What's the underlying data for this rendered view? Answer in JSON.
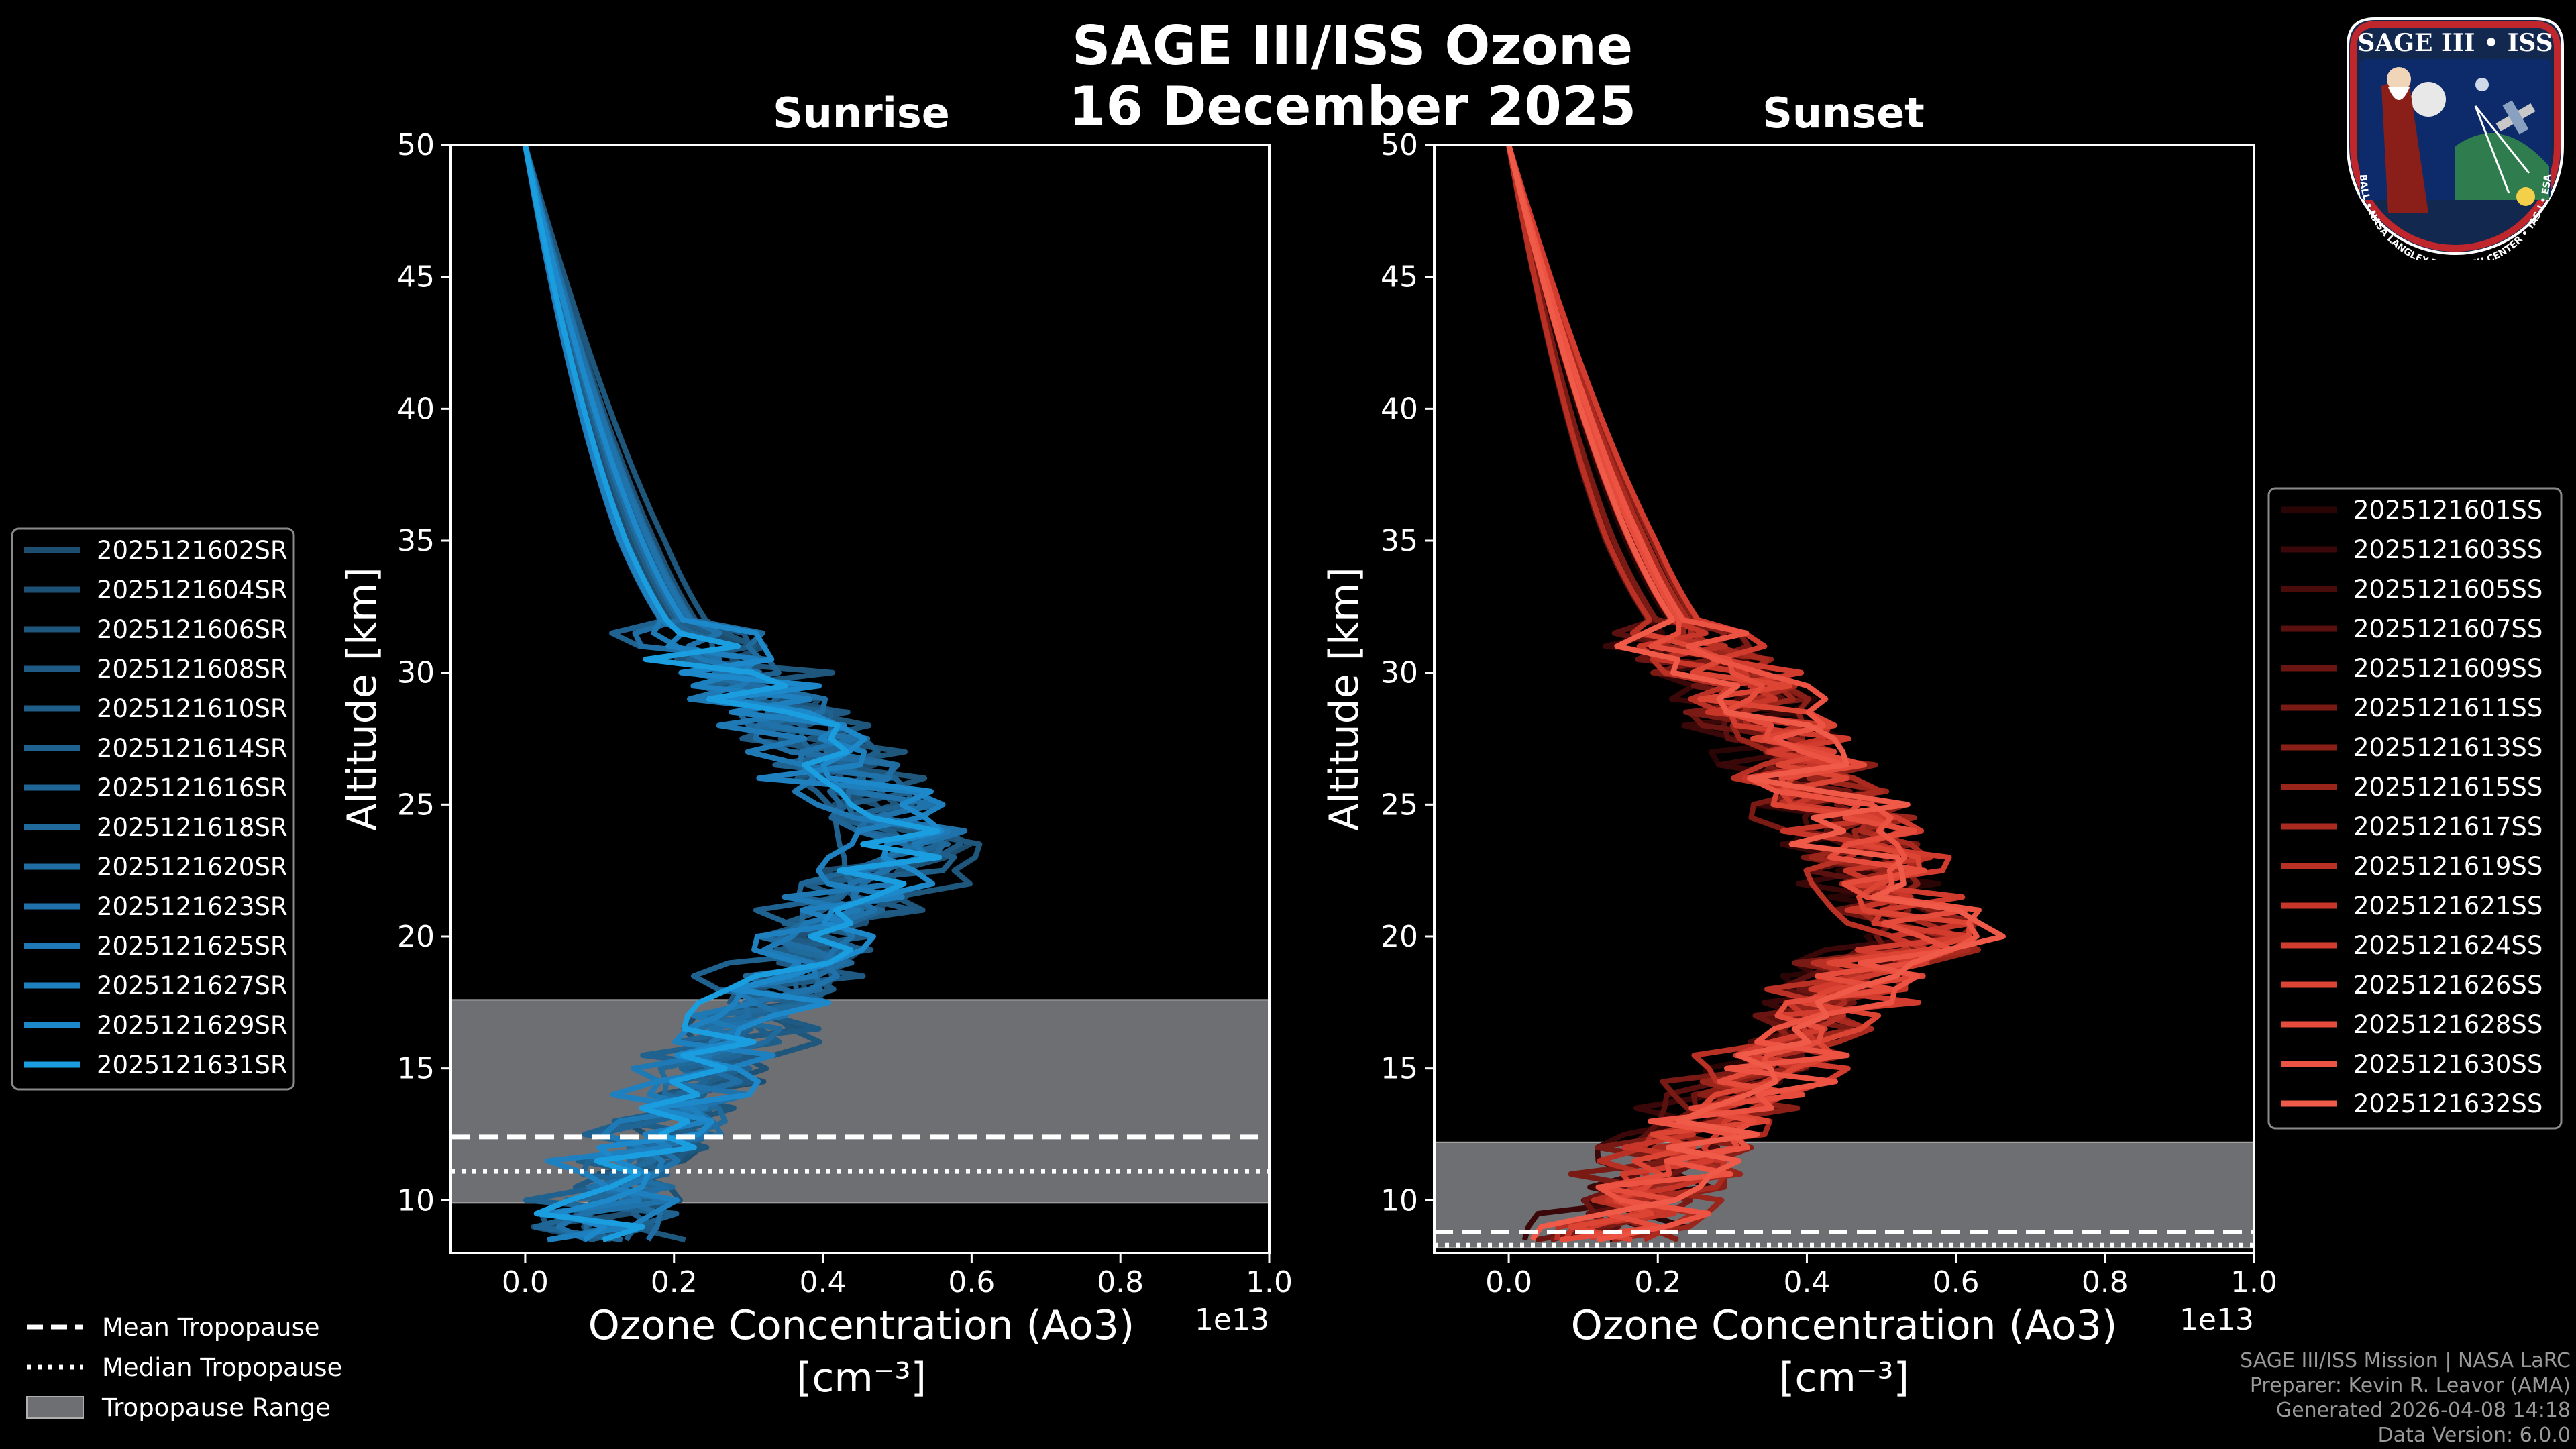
{
  "figure": {
    "title_line1": "SAGE III/ISS Ozone",
    "title_line2": "16 December 2025",
    "credits": [
      "SAGE III/ISS Mission | NASA LaRC",
      "Preparer: Kevin R. Leavor (AMA)",
      "Generated 2026-04-08 14:18",
      "Data Version: 6.0.0"
    ],
    "logo": {
      "title": "SAGE III • ISS",
      "ring_text": "BALL • NASA LANGLEY RESEARCH CENTER • TAS-I • ESA"
    },
    "colors": {
      "background": "#000000",
      "sunrise": "#1a9ee0",
      "sunset": "#f05a48",
      "tropopause_range": "#6e6f72"
    }
  },
  "bottom_legend": [
    {
      "label": "Mean Tropopause",
      "style": "dashed"
    },
    {
      "label": "Median Tropopause",
      "style": "dotted"
    },
    {
      "label": "Tropopause Range",
      "style": "patch"
    }
  ],
  "chart_data": [
    {
      "type": "line",
      "title": "Sunrise",
      "xlabel": "Ozone Concentration (Ao3)",
      "xlabel_units": "[cm⁻³]",
      "ylabel": "Altitude [km]",
      "x_scale_label": "1e13",
      "xlim": [
        -0.1,
        1.0
      ],
      "ylim": [
        8,
        50
      ],
      "xticks": [
        "0.0",
        "0.2",
        "0.4",
        "0.6",
        "0.8",
        "1.0"
      ],
      "yticks": [
        "10",
        "15",
        "20",
        "25",
        "30",
        "35",
        "40",
        "45",
        "50"
      ],
      "tropopause": {
        "range": [
          9.9,
          17.6
        ],
        "mean": 12.4,
        "median": 11.1
      },
      "peak": {
        "altitude": 23.5,
        "value": 0.54
      },
      "profiles": [
        "2025121602SR",
        "2025121604SR",
        "2025121606SR",
        "2025121608SR",
        "2025121610SR",
        "2025121614SR",
        "2025121616SR",
        "2025121618SR",
        "2025121620SR",
        "2025121623SR",
        "2025121625SR",
        "2025121627SR",
        "2025121629SR",
        "2025121631SR"
      ],
      "profile_colors": [
        "#1d4e70",
        "#1d5276",
        "#1e567c",
        "#1e5a83",
        "#1f5e89",
        "#1f628f",
        "#1f6696",
        "#206a9c",
        "#206ea3",
        "#2072ab",
        "#1f79b5",
        "#1e80bf",
        "#1d88ca",
        "#1a9ee0"
      ]
    },
    {
      "type": "line",
      "title": "Sunset",
      "xlabel": "Ozone Concentration (Ao3)",
      "xlabel_units": "[cm⁻³]",
      "ylabel": "Altitude [km]",
      "x_scale_label": "1e13",
      "xlim": [
        -0.1,
        1.0
      ],
      "ylim": [
        8,
        50
      ],
      "xticks": [
        "0.0",
        "0.2",
        "0.4",
        "0.6",
        "0.8",
        "1.0"
      ],
      "yticks": [
        "10",
        "15",
        "20",
        "25",
        "30",
        "35",
        "40",
        "45",
        "50"
      ],
      "tropopause": {
        "range": [
          8.2,
          12.2
        ],
        "mean": 8.8,
        "median": 8.3
      },
      "peak": {
        "altitude": 20.0,
        "value": 0.56
      },
      "profiles": [
        "2025121601SS",
        "2025121603SS",
        "2025121605SS",
        "2025121607SS",
        "2025121609SS",
        "2025121611SS",
        "2025121613SS",
        "2025121615SS",
        "2025121617SS",
        "2025121619SS",
        "2025121621SS",
        "2025121624SS",
        "2025121626SS",
        "2025121628SS",
        "2025121630SS",
        "2025121632SS"
      ],
      "profile_colors": [
        "#2a0505",
        "#3a0808",
        "#4a0c0b",
        "#5a100e",
        "#6a1511",
        "#7a1a14",
        "#8a1f17",
        "#9a251b",
        "#aa2a1f",
        "#b93024",
        "#c73629",
        "#d23c2e",
        "#dc4434",
        "#e64c3b",
        "#ec5342",
        "#f05a48"
      ]
    }
  ]
}
